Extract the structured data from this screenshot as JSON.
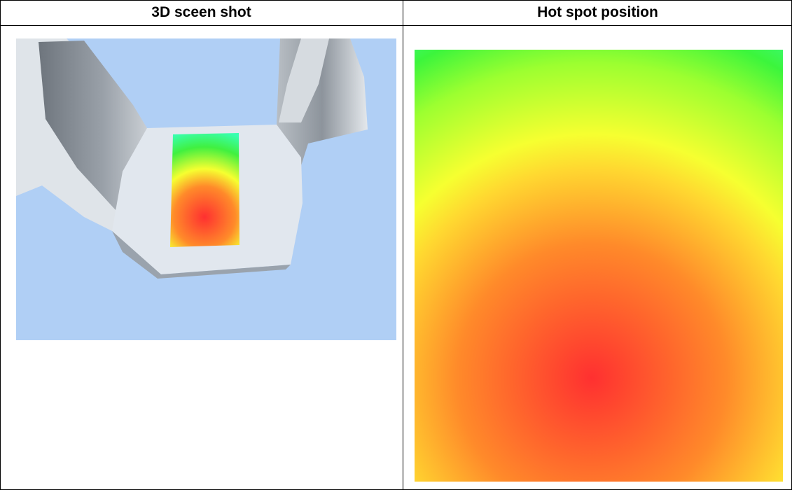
{
  "table": {
    "headers": [
      "3D sceen shot",
      "Hot spot position"
    ]
  }
}
